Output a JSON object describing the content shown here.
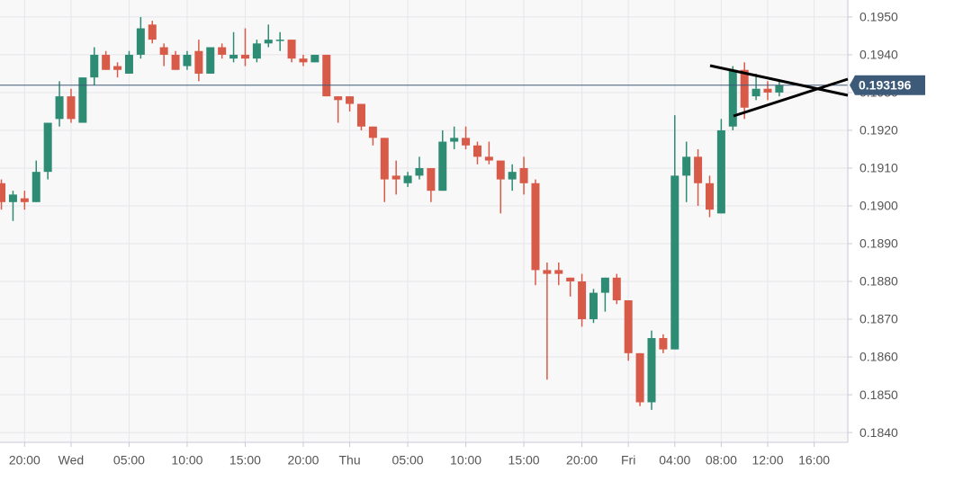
{
  "chart_data": {
    "type": "candlestick",
    "x": [
      -6,
      -5,
      -4,
      -3,
      -2,
      -1,
      0,
      1,
      2,
      3,
      4,
      5,
      6,
      7,
      8,
      9,
      10,
      11,
      12,
      13,
      14,
      15,
      16,
      17,
      18,
      19,
      20,
      21,
      22,
      23,
      24,
      25,
      26,
      27,
      28,
      29,
      30,
      31,
      32,
      33,
      34,
      35,
      36,
      37,
      38,
      39,
      40,
      41,
      42,
      43,
      44,
      45,
      46,
      47,
      48,
      49,
      50,
      51,
      52,
      53,
      54,
      55,
      56,
      57,
      58,
      59,
      60,
      61
    ],
    "open": [
      0.1906,
      0.1901,
      0.1902,
      0.1901,
      0.1909,
      0.1923,
      0.1929,
      0.1922,
      0.1934,
      0.194,
      0.1937,
      0.1935,
      0.194,
      0.1948,
      0.1942,
      0.194,
      0.1937,
      0.1941,
      0.1935,
      0.1942,
      0.1939,
      0.194,
      0.1939,
      0.1943,
      0.1944,
      0.1944,
      0.1939,
      0.1938,
      0.194,
      0.1929,
      0.1929,
      0.1927,
      0.1921,
      0.1918,
      0.1908,
      0.1906,
      0.1908,
      0.191,
      0.1904,
      0.1917,
      0.1918,
      0.1916,
      0.1913,
      0.1912,
      0.1907,
      0.191,
      0.1906,
      0.1883,
      0.1883,
      0.1881,
      0.188,
      0.187,
      0.1877,
      0.1881,
      0.1875,
      0.1861,
      0.1848,
      0.1865,
      0.1862,
      0.1908,
      0.1913,
      0.1906,
      0.1898,
      0.1921,
      0.1936,
      0.1929,
      0.1931,
      0.193
    ],
    "high": [
      0.1907,
      0.1904,
      0.1904,
      0.1912,
      0.1922,
      0.1933,
      0.1931,
      0.1934,
      0.1942,
      0.1941,
      0.1938,
      0.1941,
      0.195,
      0.1949,
      0.1943,
      0.1941,
      0.1941,
      0.1944,
      0.1942,
      0.1943,
      0.1946,
      0.1947,
      0.1944,
      0.1948,
      0.1946,
      0.1944,
      0.194,
      0.194,
      0.194,
      0.1929,
      0.1929,
      0.1927,
      0.1921,
      0.1918,
      0.1912,
      0.1909,
      0.1913,
      0.191,
      0.192,
      0.1921,
      0.1921,
      0.1917,
      0.1917,
      0.1912,
      0.1911,
      0.1913,
      0.1907,
      0.1885,
      0.1885,
      0.1881,
      0.1882,
      0.1878,
      0.1881,
      0.1882,
      0.1875,
      0.1861,
      0.1867,
      0.1866,
      0.1924,
      0.1917,
      0.1915,
      0.1908,
      0.1923,
      0.1937,
      0.1938,
      0.1935,
      0.1933,
      0.1933
    ],
    "low": [
      0.1899,
      0.1896,
      0.1899,
      0.1901,
      0.1907,
      0.1921,
      0.1922,
      0.1922,
      0.1932,
      0.1936,
      0.1934,
      0.1935,
      0.1939,
      0.1943,
      0.1937,
      0.1936,
      0.1936,
      0.1933,
      0.1935,
      0.1939,
      0.1938,
      0.1937,
      0.1938,
      0.1942,
      0.1941,
      0.1938,
      0.1937,
      0.1938,
      0.1929,
      0.1922,
      0.1925,
      0.192,
      0.1916,
      0.1901,
      0.1903,
      0.1905,
      0.1907,
      0.1901,
      0.1904,
      0.1915,
      0.1915,
      0.1911,
      0.1911,
      0.1898,
      0.1904,
      0.1903,
      0.1879,
      0.1854,
      0.1879,
      0.1876,
      0.1868,
      0.1869,
      0.1872,
      0.1874,
      0.1859,
      0.1847,
      0.1846,
      0.1861,
      0.1862,
      0.1901,
      0.19,
      0.1897,
      0.1898,
      0.192,
      0.1923,
      0.1928,
      0.1928,
      0.1929
    ],
    "close": [
      0.1901,
      0.1903,
      0.1901,
      0.1909,
      0.1922,
      0.1929,
      0.1923,
      0.1934,
      0.194,
      0.1936,
      0.1936,
      0.194,
      0.1947,
      0.1944,
      0.194,
      0.1936,
      0.194,
      0.1935,
      0.1942,
      0.194,
      0.194,
      0.1939,
      0.1943,
      0.1944,
      0.1944,
      0.1939,
      0.1938,
      0.194,
      0.1929,
      0.1928,
      0.1927,
      0.1921,
      0.1918,
      0.1907,
      0.1907,
      0.1908,
      0.191,
      0.1904,
      0.1917,
      0.1918,
      0.1916,
      0.1913,
      0.1912,
      0.1907,
      0.1909,
      0.1906,
      0.1883,
      0.1882,
      0.1882,
      0.188,
      0.187,
      0.1877,
      0.1881,
      0.1875,
      0.1861,
      0.1848,
      0.1865,
      0.1862,
      0.1908,
      0.1913,
      0.1906,
      0.1899,
      0.192,
      0.1936,
      0.1926,
      0.1931,
      0.193,
      0.1932
    ],
    "up_color": "#2e8b74",
    "down_color": "#d85a48",
    "xlim": [
      -6.12,
      66.9
    ],
    "ylim": [
      0.18374,
      0.19545
    ],
    "xticks": [
      {
        "value": -4,
        "label": "20:00"
      },
      {
        "value": 0,
        "label": "Wed"
      },
      {
        "value": 5,
        "label": "05:00"
      },
      {
        "value": 10,
        "label": "10:00"
      },
      {
        "value": 15,
        "label": "15:00"
      },
      {
        "value": 20,
        "label": "20:00"
      },
      {
        "value": 24,
        "label": "Thu"
      },
      {
        "value": 29,
        "label": "05:00"
      },
      {
        "value": 34,
        "label": "10:00"
      },
      {
        "value": 39,
        "label": "15:00"
      },
      {
        "value": 44,
        "label": "20:00"
      },
      {
        "value": 48,
        "label": "Fri"
      },
      {
        "value": 52,
        "label": "04:00"
      },
      {
        "value": 56,
        "label": "08:00"
      },
      {
        "value": 60,
        "label": "12:00"
      },
      {
        "value": 64,
        "label": "16:00"
      }
    ],
    "yticks": [
      {
        "value": 0.184,
        "label": "0.1840"
      },
      {
        "value": 0.185,
        "label": "0.1850"
      },
      {
        "value": 0.186,
        "label": "0.1860"
      },
      {
        "value": 0.187,
        "label": "0.1870"
      },
      {
        "value": 0.188,
        "label": "0.1880"
      },
      {
        "value": 0.189,
        "label": "0.1890"
      },
      {
        "value": 0.19,
        "label": "0.1900"
      },
      {
        "value": 0.191,
        "label": "0.1910"
      },
      {
        "value": 0.192,
        "label": "0.1920"
      },
      {
        "value": 0.193,
        "label": "0.1930"
      },
      {
        "value": 0.194,
        "label": "0.1940"
      },
      {
        "value": 0.195,
        "label": "0.1950"
      }
    ],
    "grid": true,
    "last_price": 0.193196,
    "last_price_color": "#3d5a78"
  }
}
